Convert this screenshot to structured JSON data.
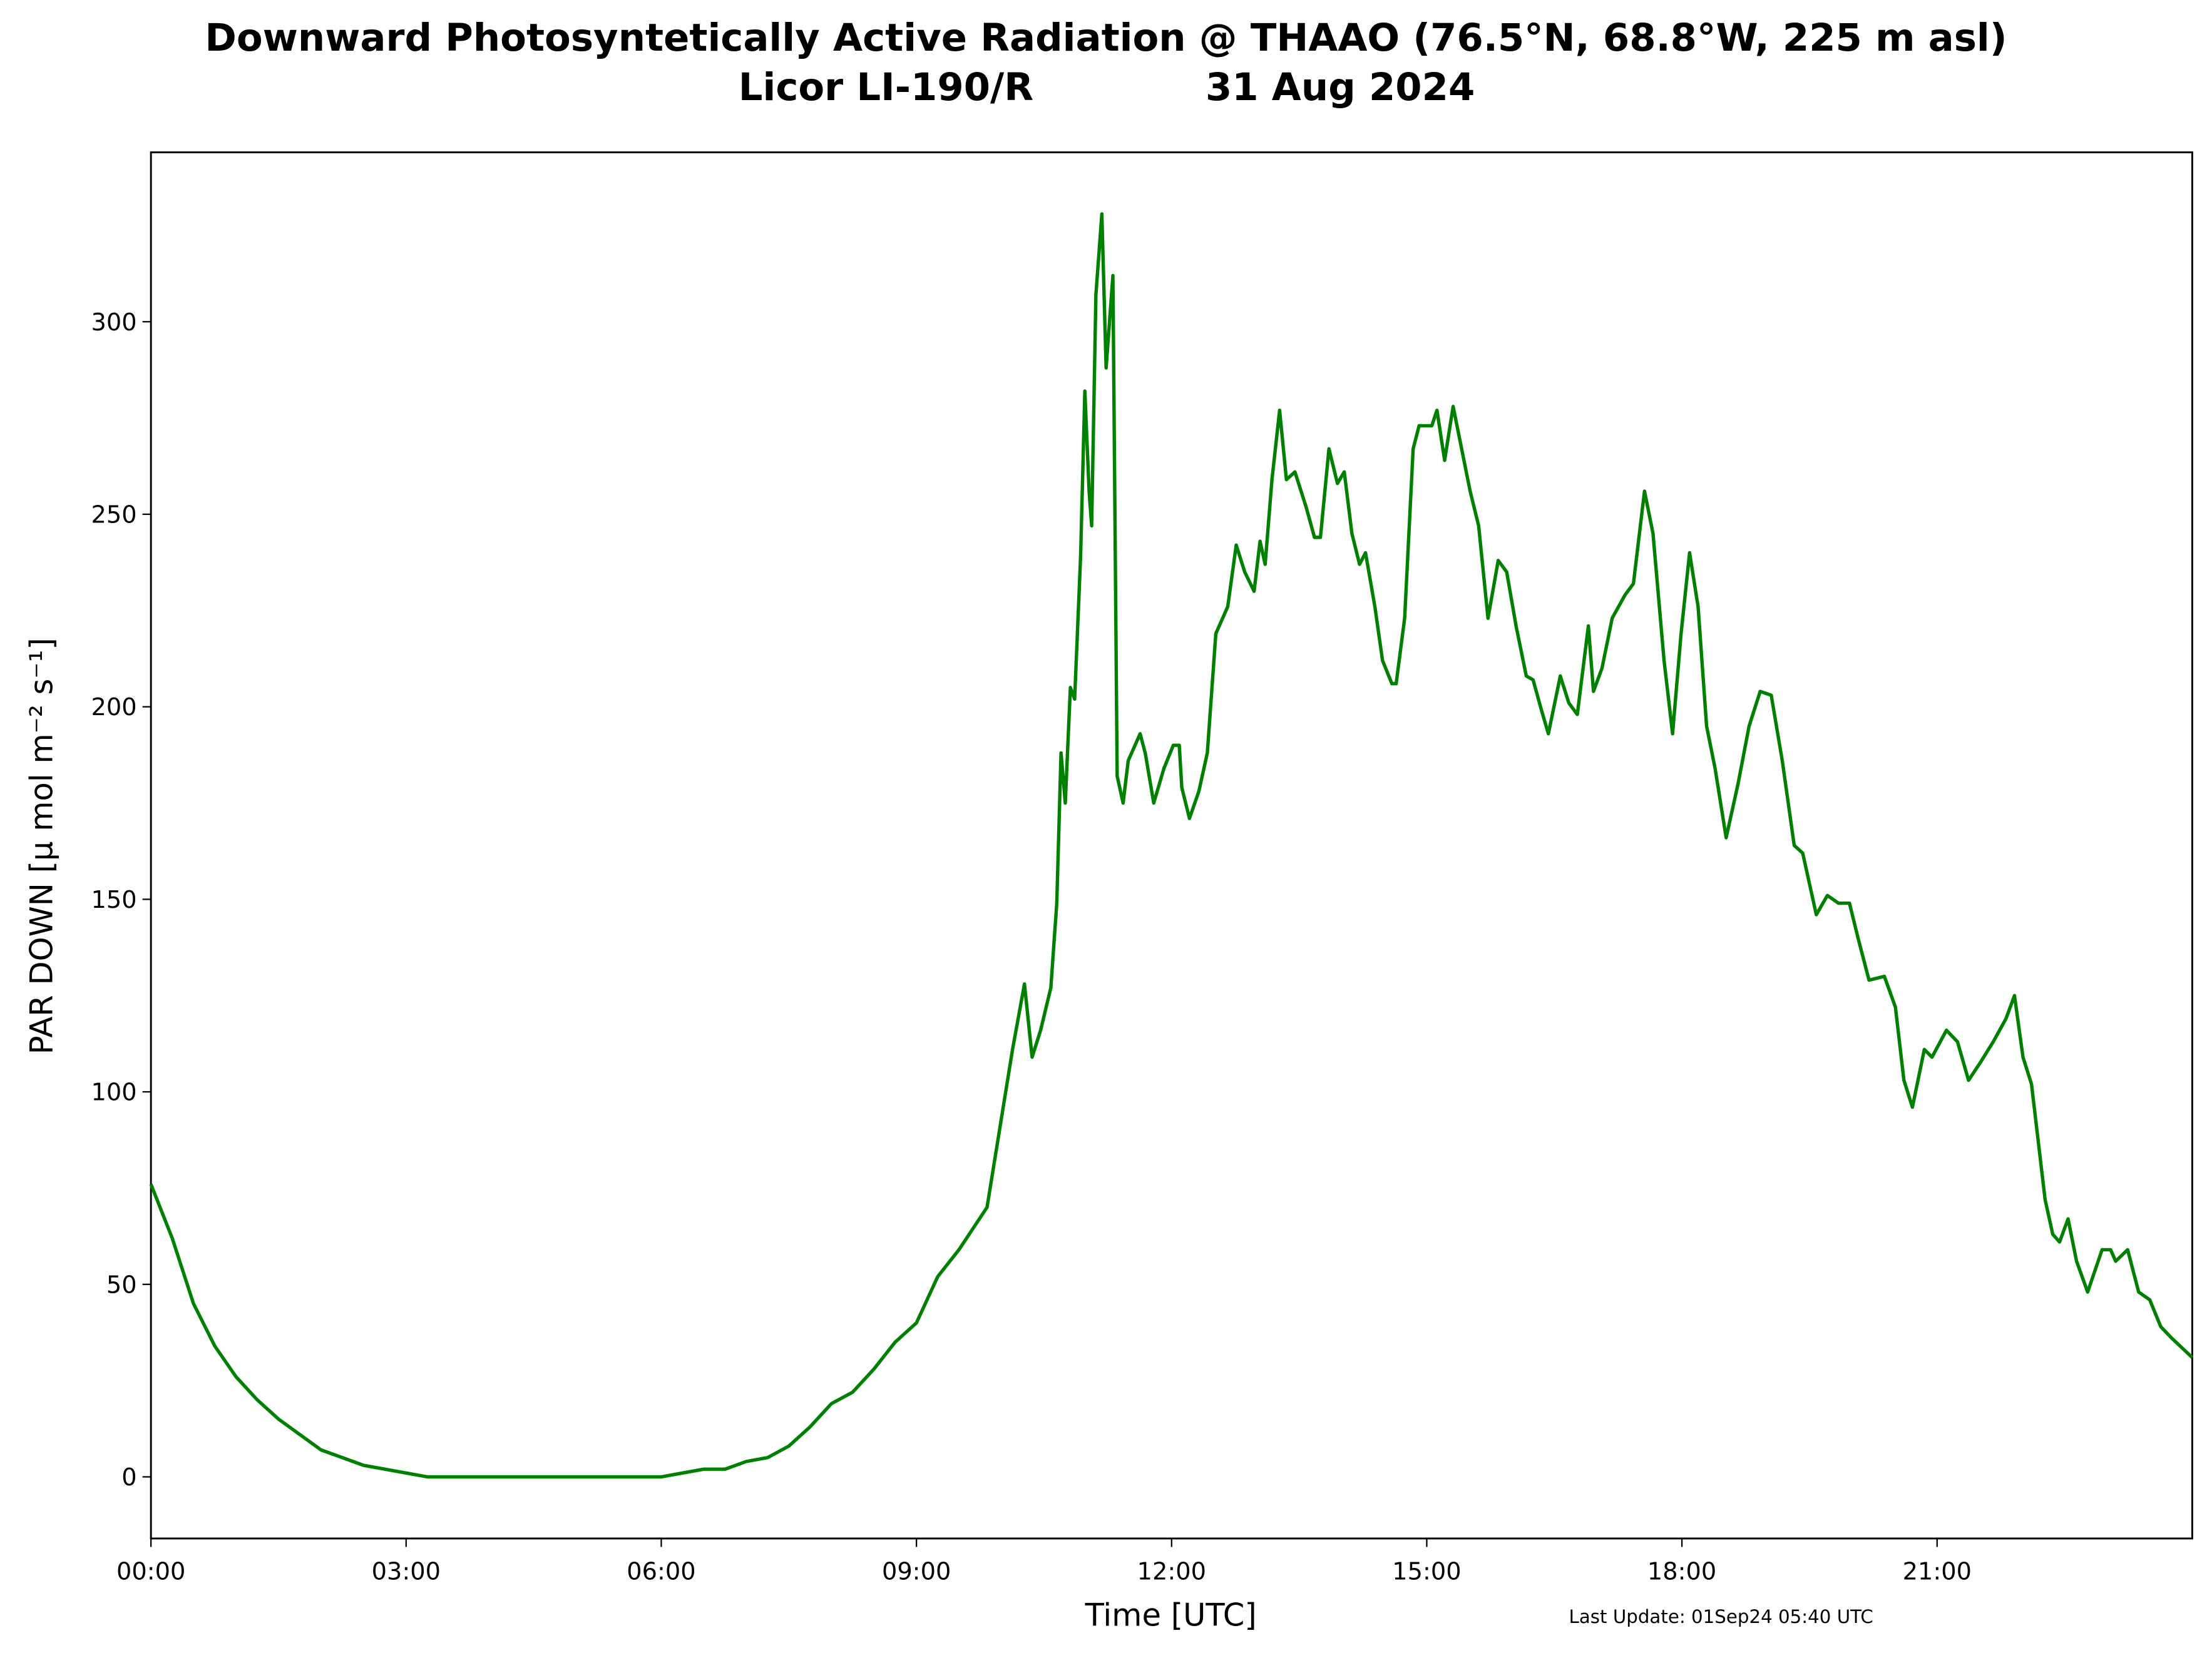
{
  "chart_data": {
    "type": "line",
    "title": "Downward Photosyntetically Active Radiation @ THAAO (76.5°N, 68.8°W, 225 m asl)",
    "instrument": "Licor LI-190/R",
    "date": "31 Aug 2024",
    "x_label": "Time [UTC]",
    "y_label": "PAR DOWN [μ mol m⁻² s⁻¹]",
    "footer": "Last Update: 01Sep24 05:40 UTC",
    "xlim": [
      0,
      24
    ],
    "ylim": [
      -16,
      344
    ],
    "xticks": [
      {
        "value": 0,
        "label": "00:00"
      },
      {
        "value": 3,
        "label": "03:00"
      },
      {
        "value": 6,
        "label": "06:00"
      },
      {
        "value": 9,
        "label": "09:00"
      },
      {
        "value": 12,
        "label": "12:00"
      },
      {
        "value": 15,
        "label": "15:00"
      },
      {
        "value": 18,
        "label": "18:00"
      },
      {
        "value": 21,
        "label": "21:00"
      }
    ],
    "yticks": [
      0,
      50,
      100,
      150,
      200,
      250,
      300
    ],
    "grid": false,
    "series": [
      {
        "name": "PAR DOWN",
        "color": "#008000",
        "x": [
          0,
          0.25,
          0.5,
          0.75,
          1,
          1.25,
          1.5,
          1.75,
          2,
          2.25,
          2.5,
          2.75,
          3,
          3.25,
          4,
          5,
          6,
          6.25,
          6.5,
          6.75,
          7,
          7.25,
          7.5,
          7.75,
          8,
          8.25,
          8.5,
          8.75,
          9,
          9.25,
          9.5,
          9.83,
          10.13,
          10.27,
          10.36,
          10.46,
          10.58,
          10.65,
          10.7,
          10.75,
          10.81,
          10.86,
          10.93,
          10.98,
          11.03,
          11.06,
          11.11,
          11.18,
          11.23,
          11.28,
          11.31,
          11.36,
          11.43,
          11.49,
          11.63,
          11.69,
          11.79,
          11.91,
          12.02,
          12.09,
          12.12,
          12.21,
          12.32,
          12.42,
          12.52,
          12.66,
          12.76,
          12.86,
          12.97,
          13.04,
          13.1,
          13.18,
          13.27,
          13.35,
          13.45,
          13.58,
          13.68,
          13.75,
          13.85,
          13.95,
          14.03,
          14.12,
          14.21,
          14.28,
          14.39,
          14.48,
          14.59,
          14.64,
          14.74,
          14.84,
          14.91,
          15.06,
          15.12,
          15.21,
          15.31,
          15.41,
          15.51,
          15.61,
          15.72,
          15.84,
          15.94,
          16.05,
          16.17,
          16.25,
          16.35,
          16.43,
          16.57,
          16.67,
          16.77,
          16.9,
          16.96,
          17.06,
          17.18,
          17.33,
          17.43,
          17.56,
          17.66,
          17.79,
          17.89,
          17.99,
          18.09,
          18.19,
          18.29,
          18.39,
          18.52,
          18.66,
          18.79,
          18.92,
          19.05,
          19.18,
          19.32,
          19.42,
          19.58,
          19.71,
          19.84,
          19.97,
          20.07,
          20.2,
          20.38,
          20.51,
          20.61,
          20.71,
          20.85,
          20.94,
          21.11,
          21.24,
          21.37,
          21.52,
          21.66,
          21.81,
          21.91,
          22.01,
          22.11,
          22.27,
          22.36,
          22.44,
          22.54,
          22.64,
          22.77,
          22.94,
          23.04,
          23.1,
          23.24,
          23.37,
          23.5,
          23.63,
          23.76,
          24
        ],
        "values": [
          76,
          62,
          45,
          34,
          26,
          20,
          15,
          11,
          7,
          5,
          3,
          2,
          1,
          0,
          0,
          0,
          0,
          1,
          2,
          2,
          4,
          5,
          8,
          13,
          19,
          22,
          28,
          35,
          40,
          52,
          59,
          70,
          111,
          128,
          109,
          116,
          127,
          149,
          188,
          175,
          205,
          202,
          239,
          282,
          256,
          247,
          307,
          328,
          288,
          303,
          312,
          182,
          175,
          186,
          193,
          188,
          175,
          184,
          190,
          190,
          179,
          171,
          178,
          188,
          219,
          226,
          242,
          235,
          230,
          243,
          237,
          259,
          277,
          259,
          261,
          252,
          244,
          244,
          267,
          258,
          261,
          245,
          237,
          240,
          226,
          212,
          206,
          206,
          223,
          267,
          273,
          273,
          277,
          264,
          278,
          267,
          256,
          247,
          223,
          238,
          235,
          221,
          208,
          207,
          199,
          193,
          208,
          201,
          198,
          221,
          204,
          210,
          223,
          229,
          232,
          256,
          245,
          212,
          193,
          219,
          240,
          226,
          195,
          184,
          166,
          180,
          195,
          204,
          203,
          186,
          164,
          162,
          146,
          151,
          149,
          149,
          140,
          129,
          130,
          122,
          103,
          96,
          111,
          109,
          116,
          113,
          103,
          108,
          113,
          119,
          125,
          109,
          102,
          72,
          63,
          61,
          67,
          56,
          48,
          59,
          59,
          56,
          59,
          48,
          46,
          39,
          36,
          31
        ]
      }
    ]
  }
}
